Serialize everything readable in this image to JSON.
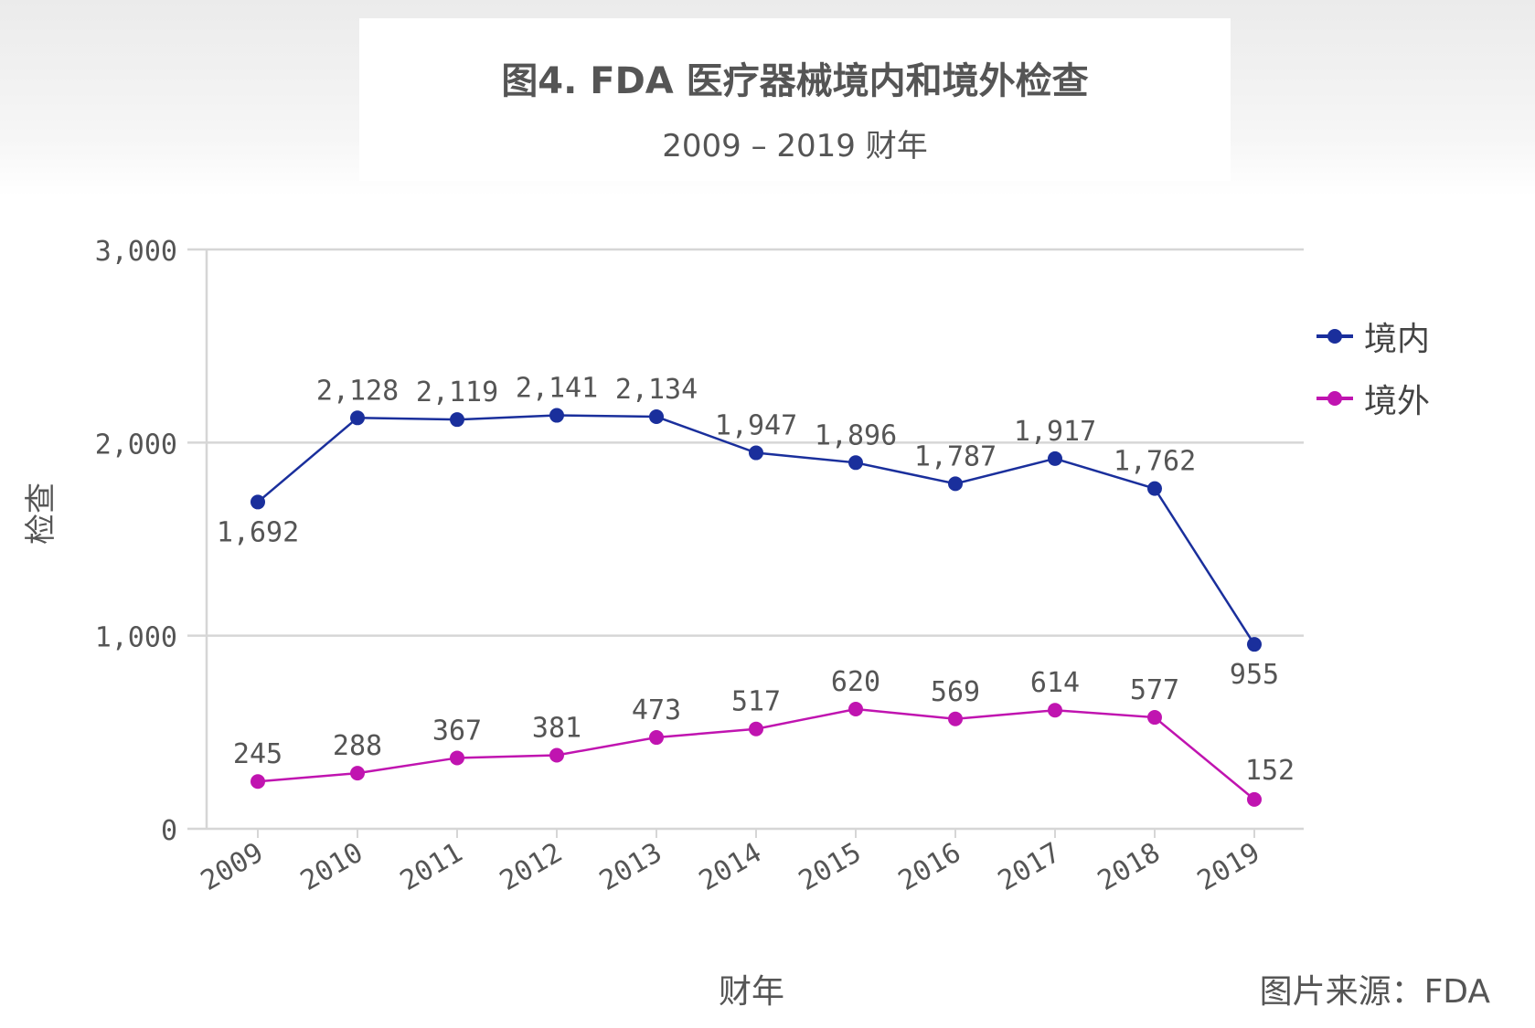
{
  "header": {
    "title": "图4. FDA 医疗器械境内和境外检查",
    "subtitle": "2009 – 2019 财年"
  },
  "footer": {
    "source": "图片来源：FDA"
  },
  "colors": {
    "domestic": "#1a2f9c",
    "foreign": "#c014b0",
    "grid": "#d6d6d6",
    "axis_text": "#555555"
  },
  "chart_data": {
    "type": "line",
    "categories": [
      "2009",
      "2010",
      "2011",
      "2012",
      "2013",
      "2014",
      "2015",
      "2016",
      "2017",
      "2018",
      "2019"
    ],
    "series": [
      {
        "name": "境内",
        "values": [
          1692,
          2128,
          2119,
          2141,
          2134,
          1947,
          1896,
          1787,
          1917,
          1762,
          955
        ],
        "labels": [
          "1,692",
          "2,128",
          "2,119",
          "2,141",
          "2,134",
          "1,947",
          "1,896",
          "1,787",
          "1,917",
          "1,762",
          "955"
        ]
      },
      {
        "name": "境外",
        "values": [
          245,
          288,
          367,
          381,
          473,
          517,
          620,
          569,
          614,
          577,
          152
        ],
        "labels": [
          "245",
          "288",
          "367",
          "381",
          "473",
          "517",
          "620",
          "569",
          "614",
          "577",
          "152"
        ]
      }
    ],
    "xlabel": "财年",
    "ylabel": "检查",
    "ylim": [
      0,
      3000
    ],
    "yticks": [
      0,
      1000,
      2000,
      3000
    ],
    "ytick_labels": [
      "0",
      "1,000",
      "2,000",
      "3,000"
    ],
    "grid": true,
    "legend_position": "right"
  }
}
